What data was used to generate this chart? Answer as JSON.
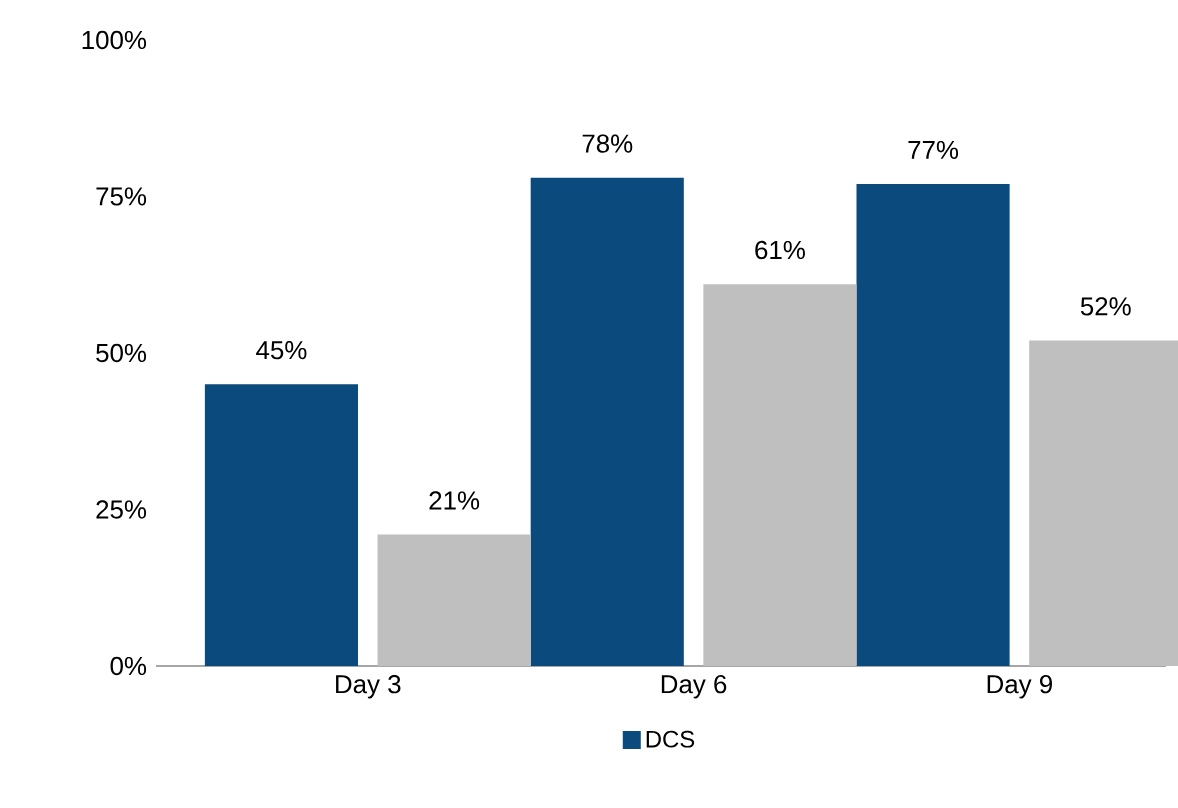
{
  "chart_data": {
    "type": "bar",
    "categories": [
      "Day 3",
      "Day 6",
      "Day 9"
    ],
    "series": [
      {
        "name": "DCS",
        "color": "#0b4a7d",
        "values": [
          45,
          78,
          77
        ],
        "value_labels": [
          "45%",
          "78%",
          "77%"
        ]
      },
      {
        "color": "#bfbfbf",
        "values": [
          21,
          61,
          52
        ],
        "value_labels": [
          "21%",
          "61%",
          "52%"
        ]
      }
    ],
    "ylim": [
      0,
      100
    ],
    "yticks": [
      {
        "value": 0,
        "label": "0%"
      },
      {
        "value": 25,
        "label": "25%"
      },
      {
        "value": 50,
        "label": "50%"
      },
      {
        "value": 75,
        "label": "75%"
      },
      {
        "value": 100,
        "label": "100%"
      }
    ],
    "legend": "bottom"
  }
}
